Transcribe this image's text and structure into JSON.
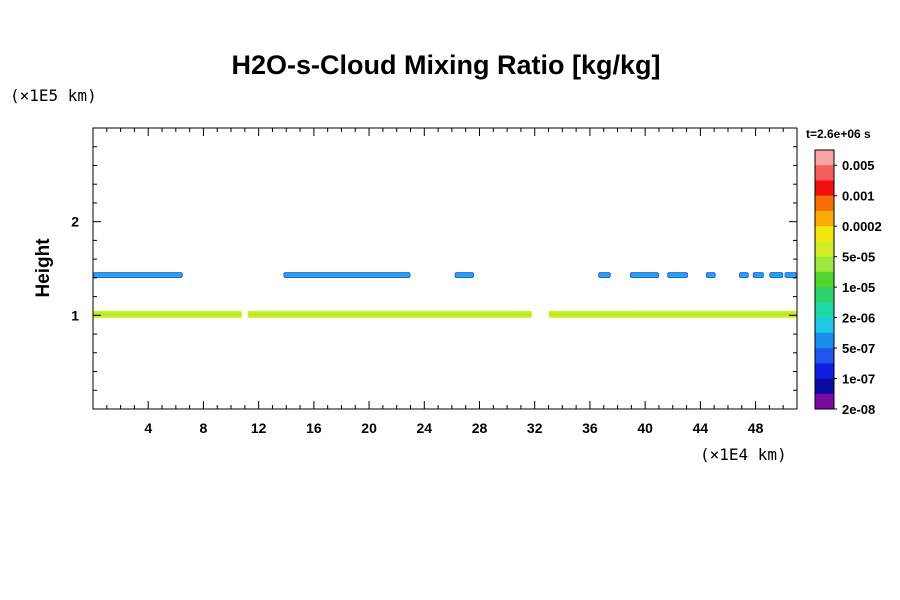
{
  "chart_data": {
    "type": "heatmap",
    "title": "H2O-s-Cloud Mixing Ratio [kg/kg]",
    "xlabel": "",
    "ylabel": "Height",
    "x_scale_label": "(×1E4 km)",
    "y_scale_label": "(×1E5 km)",
    "time_label": "t=2.6e+06 s",
    "xlim": [
      0,
      51
    ],
    "ylim": [
      0,
      3
    ],
    "x_ticks": [
      "4",
      "8",
      "12",
      "16",
      "20",
      "24",
      "28",
      "32",
      "36",
      "40",
      "44",
      "48"
    ],
    "y_ticks": [
      "1",
      "2"
    ],
    "grid": false,
    "colorbar": {
      "labels": [
        "0.005",
        "0.001",
        "0.0002",
        "5e-05",
        "1e-05",
        "2e-06",
        "5e-07",
        "1e-07",
        "2e-08"
      ],
      "colors": [
        "#f9a4a4",
        "#f45e5e",
        "#ef0f0f",
        "#f76e07",
        "#fbaa0a",
        "#f2e60e",
        "#d2ec2a",
        "#9ee73e",
        "#52d52e",
        "#2fd36c",
        "#1fd8a8",
        "#20c8e6",
        "#1a8cec",
        "#2057eb",
        "#0f1ee0",
        "#0a0aa3",
        "#7a0aa3"
      ]
    },
    "series": [
      {
        "band": "cloud layer near height 1.0",
        "level": "5e-05",
        "segments": [
          [
            0.0,
            10.8
          ],
          [
            11.2,
            31.8
          ],
          [
            33.0,
            51.0
          ]
        ],
        "height_range": [
          0.97,
          1.05
        ]
      },
      {
        "band": "cloud layer near height 1.43",
        "level": "5e-07",
        "segments": [
          [
            0.0,
            6.5
          ],
          [
            13.8,
            23.0
          ],
          [
            26.2,
            27.6
          ],
          [
            36.6,
            37.5
          ],
          [
            38.9,
            41.0
          ],
          [
            41.6,
            43.1
          ],
          [
            44.4,
            45.1
          ],
          [
            46.8,
            47.5
          ],
          [
            47.8,
            48.6
          ],
          [
            49.0,
            50.0
          ],
          [
            50.1,
            51.0
          ]
        ],
        "height_range": [
          1.4,
          1.46
        ]
      }
    ]
  }
}
